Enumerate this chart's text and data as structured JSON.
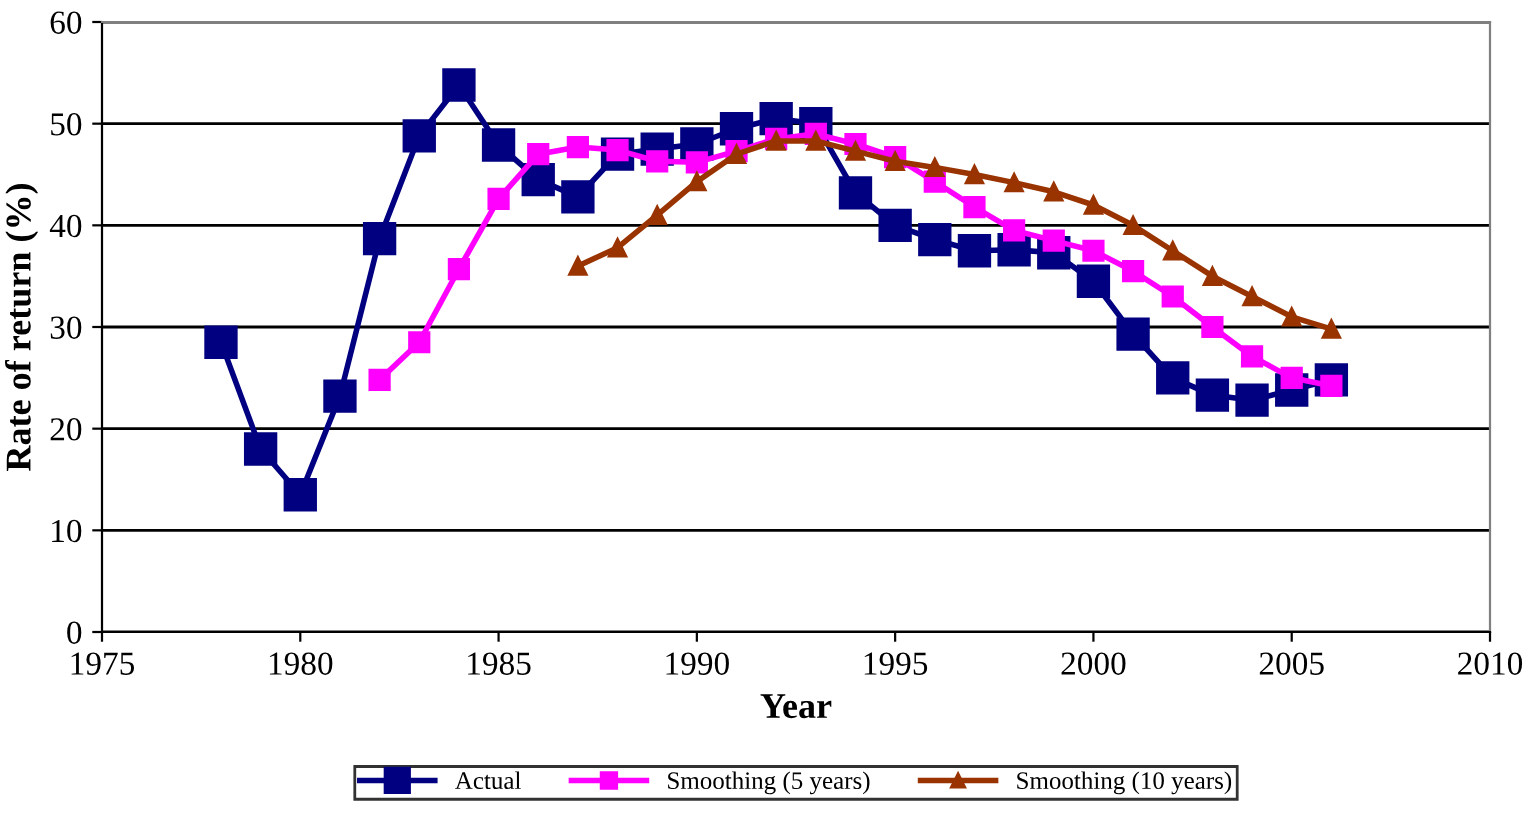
{
  "chart_data": {
    "type": "line",
    "xlabel": "Year",
    "ylabel": "Rate of return (%)",
    "xlim": [
      1975,
      2010
    ],
    "xticks": [
      1975,
      1980,
      1985,
      1990,
      1995,
      2000,
      2005,
      2010
    ],
    "ylim": [
      0,
      60
    ],
    "yticks": [
      0,
      10,
      20,
      30,
      40,
      50,
      60
    ],
    "grid": "y",
    "legend": "bottom",
    "series": [
      {
        "name": "Actual",
        "color": "#000080",
        "marker": "square",
        "x": [
          1978,
          1979,
          1980,
          1981,
          1982,
          1983,
          1984,
          1985,
          1986,
          1987,
          1988,
          1989,
          1990,
          1991,
          1992,
          1993,
          1994,
          1995,
          1996,
          1997,
          1998,
          1999,
          2000,
          2001,
          2002,
          2003,
          2004,
          2005,
          2006
        ],
        "values": [
          28.5,
          18,
          13.5,
          23.2,
          38.7,
          48.8,
          53.8,
          47.9,
          44.5,
          42.8,
          47,
          47.5,
          48,
          49.5,
          50.5,
          50,
          43.2,
          40,
          38.6,
          37.5,
          37.6,
          37.3,
          34.5,
          29.3,
          25,
          23.3,
          22.8,
          23.8,
          24.8
        ]
      },
      {
        "name": "Smoothing (5 years)",
        "color": "#ff00ff",
        "marker": "square",
        "x": [
          1982,
          1983,
          1984,
          1985,
          1986,
          1987,
          1988,
          1989,
          1990,
          1991,
          1992,
          1993,
          1994,
          1995,
          1996,
          1997,
          1998,
          1999,
          2000,
          2001,
          2002,
          2003,
          2004,
          2005,
          2006
        ],
        "values": [
          24.8,
          28.5,
          35.7,
          42.6,
          47,
          47.7,
          47.4,
          46.3,
          46.2,
          47.3,
          48.5,
          49,
          48,
          46.7,
          44.3,
          41.8,
          39.5,
          38.5,
          37.5,
          35.5,
          33,
          30,
          27.1,
          25,
          24.2
        ]
      },
      {
        "name": "Smoothing (10 years)",
        "color": "#993300",
        "marker": "triangle",
        "x": [
          1987,
          1988,
          1989,
          1990,
          1991,
          1992,
          1993,
          1994,
          1995,
          1996,
          1997,
          1998,
          1999,
          2000,
          2001,
          2002,
          2003,
          2004,
          2005,
          2006
        ],
        "values": [
          36,
          37.8,
          41,
          44.3,
          47,
          48.3,
          48.3,
          47.3,
          46.3,
          45.7,
          45,
          44.2,
          43.3,
          42,
          40,
          37.5,
          35,
          33,
          31,
          29.8
        ]
      }
    ]
  }
}
